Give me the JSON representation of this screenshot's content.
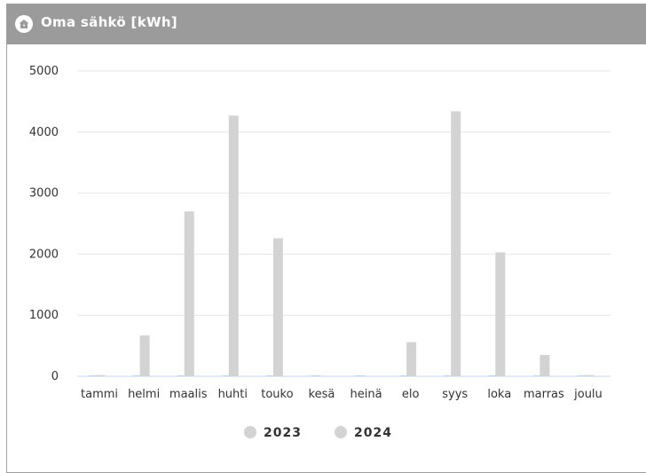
{
  "header": {
    "title": "Oma sähkö [kWh]",
    "icon": "home-icon"
  },
  "colors": {
    "header_bg": "#9b9b9b",
    "bar": "#d3d3d3",
    "bar_2023": "#bcd4f0",
    "grid": "#e6e6e6",
    "axis_baseline": "#c5d6ec",
    "legend_2023": "#d3d3d3",
    "legend_2024": "#d3d3d3"
  },
  "chart_data": {
    "type": "bar",
    "title": "Oma sähkö [kWh]",
    "xlabel": "",
    "ylabel": "",
    "categories": [
      "tammi",
      "helmi",
      "maalis",
      "huhti",
      "touko",
      "kesä",
      "heinä",
      "elo",
      "syys",
      "loka",
      "marras",
      "joulu"
    ],
    "series": [
      {
        "name": "2023",
        "values": [
          0,
          0,
          0,
          0,
          0,
          0,
          0,
          0,
          0,
          0,
          0,
          0
        ]
      },
      {
        "name": "2024",
        "values": [
          20,
          670,
          2700,
          4270,
          2260,
          0,
          0,
          560,
          4340,
          2030,
          350,
          20
        ]
      }
    ],
    "ylim": [
      0,
      5000
    ],
    "yticks": [
      0,
      1000,
      2000,
      3000,
      4000,
      5000
    ],
    "grid": true,
    "legend": "bottom-center"
  }
}
